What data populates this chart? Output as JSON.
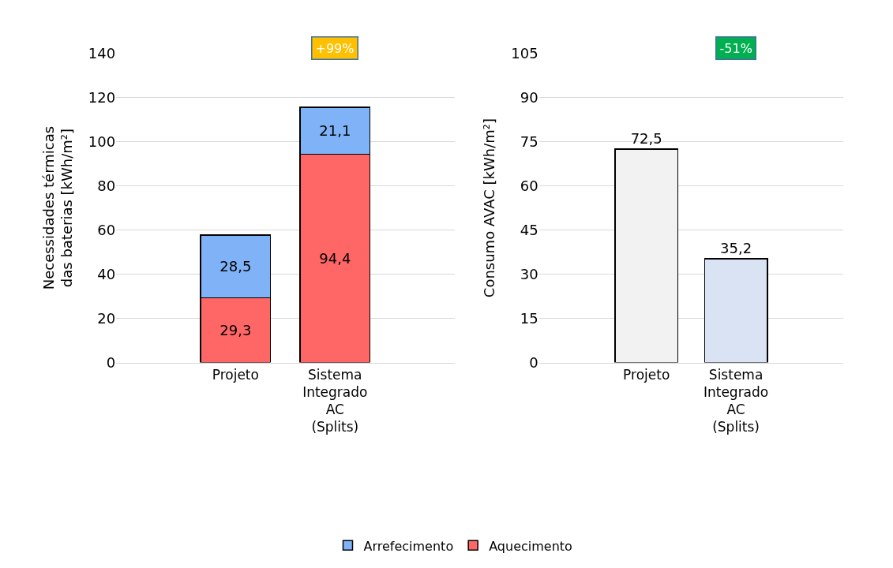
{
  "chart_data": [
    {
      "type": "bar",
      "stacked": true,
      "categories": [
        "Projeto",
        "Sistema Integrado AC (Splits)"
      ],
      "ylabel": "Necessidades térmicas das baterias [kWh/m²]",
      "series": [
        {
          "name": "Aquecimento",
          "color": "#ff6666",
          "values": [
            29.3,
            94.4
          ],
          "value_labels": [
            "29,3",
            "94,4"
          ]
        },
        {
          "name": "Arrefecimento",
          "color": "#7fb2f7",
          "values": [
            28.5,
            21.1
          ],
          "value_labels": [
            "28,5",
            "21,1"
          ]
        }
      ],
      "ylim": [
        0,
        140
      ],
      "yticks": [
        0,
        20,
        40,
        60,
        80,
        100,
        120,
        140
      ],
      "grid": "y",
      "legend": "bottom",
      "annotations": [
        "+99%"
      ]
    },
    {
      "type": "bar",
      "categories": [
        "Projeto",
        "Sistema Integrado AC (Splits)"
      ],
      "ylabel": "Consumo AVAC [kWh/m²]",
      "values": [
        72.5,
        35.2
      ],
      "value_labels": [
        "72,5",
        "35,2"
      ],
      "colors": [
        "#f2f2f2",
        "#dae3f3"
      ],
      "ylim": [
        0,
        105
      ],
      "yticks": [
        0,
        15,
        30,
        45,
        60,
        75,
        90,
        105
      ],
      "grid": "y",
      "annotations": [
        "-51%"
      ]
    }
  ]
}
